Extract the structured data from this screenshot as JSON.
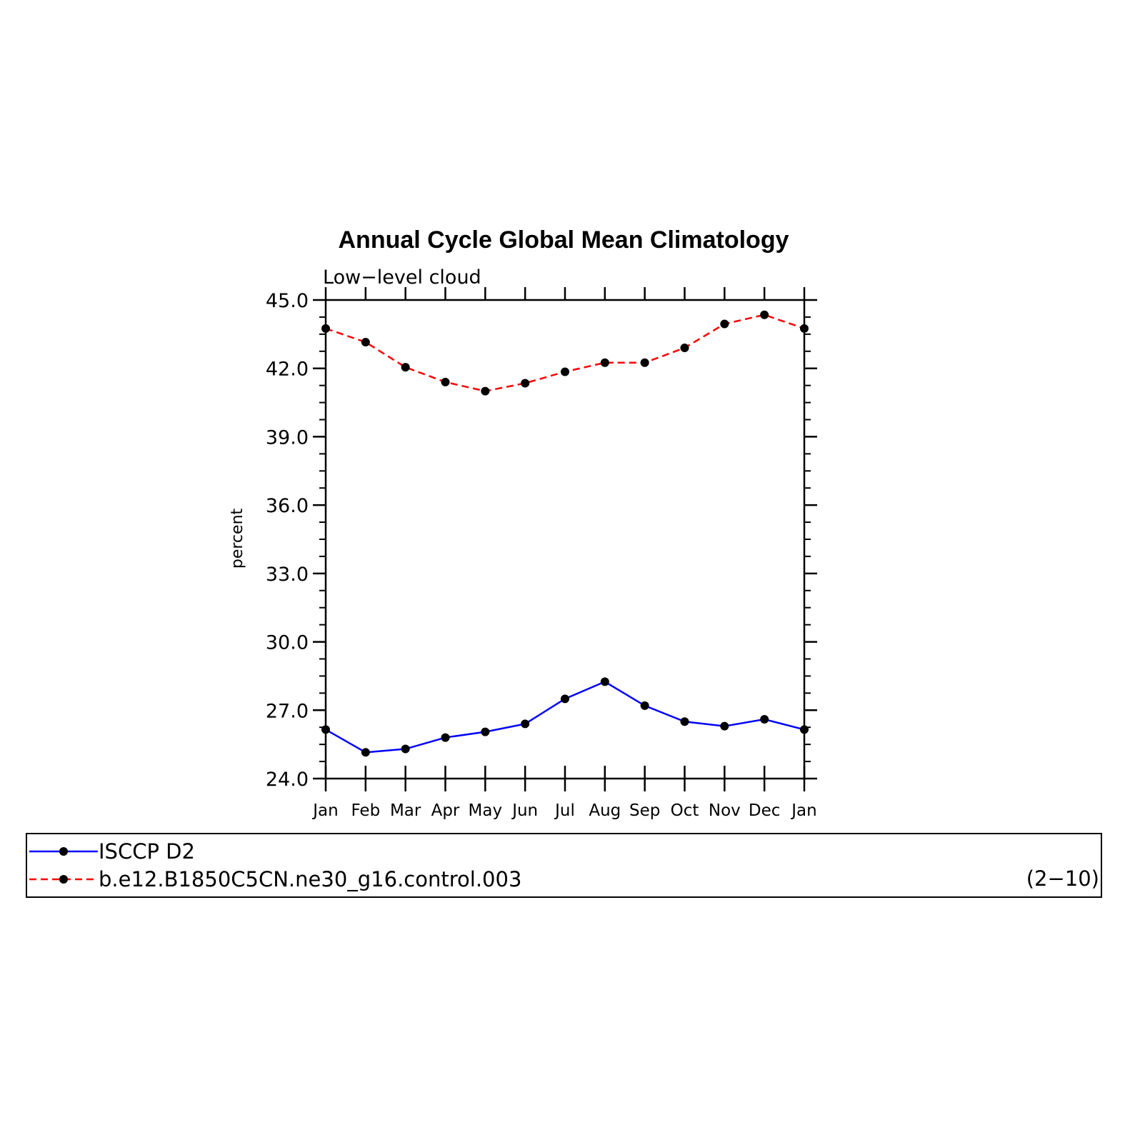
{
  "chart_data": {
    "type": "line",
    "title": "Annual Cycle Global Mean Climatology",
    "subtitle": "Low−level cloud",
    "ylabel": "percent",
    "xlabel": "",
    "ylim": [
      24.0,
      45.0
    ],
    "yticks": [
      "24.0",
      "27.0",
      "30.0",
      "33.0",
      "36.0",
      "39.0",
      "42.0",
      "45.0"
    ],
    "categories": [
      "Jan",
      "Feb",
      "Mar",
      "Apr",
      "May",
      "Jun",
      "Jul",
      "Aug",
      "Sep",
      "Oct",
      "Nov",
      "Dec",
      "Jan"
    ],
    "grid": false,
    "legend_position": "bottom",
    "series": [
      {
        "name": "ISCCP D2",
        "color": "#0000ff",
        "dash": "solid",
        "values": [
          26.15,
          25.15,
          25.3,
          25.8,
          26.05,
          26.4,
          27.5,
          28.25,
          27.2,
          26.5,
          26.3,
          26.6,
          26.15
        ]
      },
      {
        "name": "b.e12.B1850C5CN.ne30_g16.control.003",
        "color": "#ff0000",
        "dash": "dashed",
        "values": [
          43.75,
          43.15,
          42.05,
          41.4,
          41.0,
          41.35,
          41.85,
          42.25,
          42.25,
          42.9,
          43.95,
          44.35,
          43.75
        ]
      }
    ],
    "annotation": "(2−10)"
  }
}
